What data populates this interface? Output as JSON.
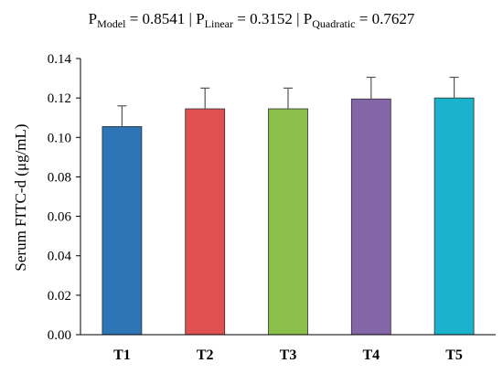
{
  "title": {
    "segments": [
      {
        "main": "P",
        "sub": "Model",
        "value": " = 0.8541 | "
      },
      {
        "main": "P",
        "sub": "Linear",
        "value": " = 0.3152 | "
      },
      {
        "main": "P",
        "sub": "Quadratic",
        "value": " = 0.7627"
      }
    ]
  },
  "chart_data": {
    "type": "bar",
    "title": "P_Model = 0.8541 | P_Linear = 0.3152 | P_Quadratic = 0.7627",
    "categories": [
      "T1",
      "T2",
      "T3",
      "T4",
      "T5"
    ],
    "values": [
      0.1055,
      0.1145,
      0.1145,
      0.1195,
      0.12
    ],
    "error_plus": [
      0.0105,
      0.0105,
      0.0105,
      0.011,
      0.0105
    ],
    "colors": [
      "#2E75B6",
      "#E05050",
      "#8BBF4C",
      "#8466A8",
      "#1AB2CC"
    ],
    "ylabel": "Serum FITC-d  (μg/mL)",
    "xlabel": "",
    "ylim": [
      0,
      0.14
    ],
    "yticks": [
      "0.00",
      "0.02",
      "0.04",
      "0.06",
      "0.08",
      "0.10",
      "0.12",
      "0.14"
    ],
    "grid": false,
    "legend": "none"
  }
}
